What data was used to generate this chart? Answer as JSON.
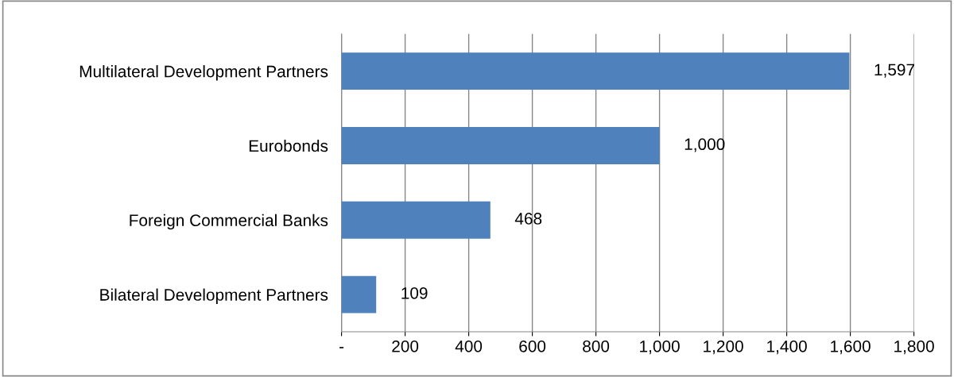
{
  "chart_data": {
    "type": "bar",
    "orientation": "horizontal",
    "categories": [
      "Multilateral Development Partners",
      "Eurobonds",
      "Foreign Commercial Banks",
      "Bilateral Development Partners"
    ],
    "values": [
      1597,
      1000,
      468,
      109
    ],
    "value_labels": [
      "1,597",
      "1,000",
      "468",
      "109"
    ],
    "color": "#4f81bd",
    "xlim": [
      0,
      1800
    ],
    "xticks": [
      {
        "value": 0,
        "label": "-"
      },
      200,
      400,
      600,
      800,
      {
        "value": 1000,
        "label": "1,000"
      },
      {
        "value": 1200,
        "label": "1,200"
      },
      {
        "value": 1400,
        "label": "1,400"
      },
      {
        "value": 1600,
        "label": "1,600"
      },
      {
        "value": 1800,
        "label": "1,800"
      }
    ],
    "grid": "x",
    "legend": false
  }
}
